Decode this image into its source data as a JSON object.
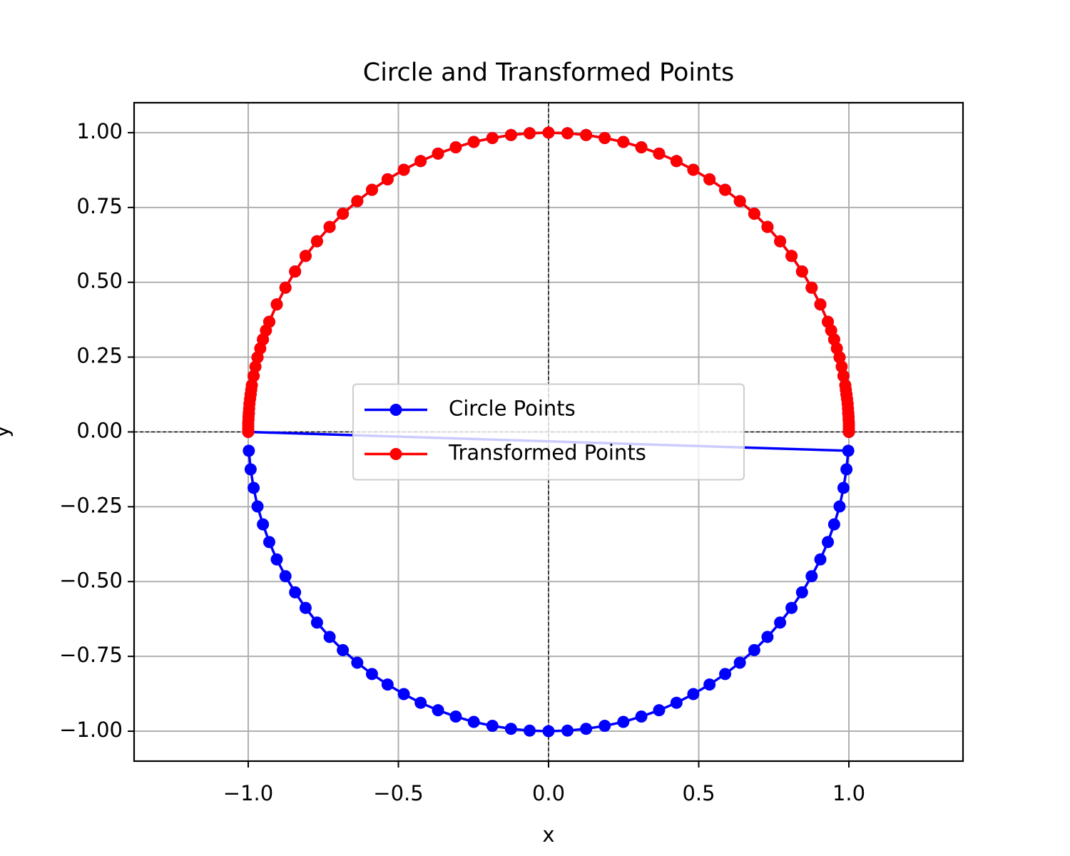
{
  "chart_data": {
    "type": "line",
    "title": "Circle and Transformed Points",
    "xlabel": "x",
    "ylabel": "y",
    "xlim": [
      -1.38,
      1.38
    ],
    "ylim": [
      -1.1,
      1.1
    ],
    "xticks": [
      {
        "value": -1,
        "label": "−1.0"
      },
      {
        "value": -0.5,
        "label": "−0.5"
      },
      {
        "value": 0,
        "label": "0.0"
      },
      {
        "value": 0.5,
        "label": "0.5"
      },
      {
        "value": 1,
        "label": "1.0"
      }
    ],
    "yticks": [
      {
        "value": -1,
        "label": "−1.00"
      },
      {
        "value": -0.75,
        "label": "−0.75"
      },
      {
        "value": -0.5,
        "label": "−0.50"
      },
      {
        "value": -0.25,
        "label": "−0.25"
      },
      {
        "value": 0,
        "label": "0.00"
      },
      {
        "value": 0.25,
        "label": "0.25"
      },
      {
        "value": 0.5,
        "label": "0.50"
      },
      {
        "value": 0.75,
        "label": "0.75"
      },
      {
        "value": 1,
        "label": "1.00"
      }
    ],
    "grid": true,
    "hline": 0,
    "vline": 0,
    "legend": "center",
    "series": [
      {
        "name": "Circle Points",
        "color": "#0000ff",
        "x": [
          1,
          0.998,
          0.992,
          0.982,
          0.969,
          0.951,
          0.93,
          0.905,
          0.876,
          0.844,
          0.809,
          0.771,
          0.729,
          0.685,
          0.637,
          0.588,
          0.536,
          0.482,
          0.426,
          0.368,
          0.309,
          0.249,
          0.187,
          0.125,
          0.063,
          0,
          -0.063,
          -0.125,
          -0.187,
          -0.249,
          -0.309,
          -0.368,
          -0.426,
          -0.482,
          -0.536,
          -0.588,
          -0.637,
          -0.685,
          -0.729,
          -0.771,
          -0.809,
          -0.844,
          -0.876,
          -0.905,
          -0.93,
          -0.951,
          -0.969,
          -0.982,
          -0.992,
          -0.998,
          -1,
          0.998,
          0.992,
          0.982,
          0.969,
          0.951,
          0.93,
          0.905,
          0.876,
          0.844,
          0.809,
          0.771,
          0.729,
          0.685,
          0.637,
          0.588,
          0.536,
          0.482,
          0.426,
          0.368,
          0.309,
          0.249,
          0.187,
          0.125,
          0.063,
          0,
          -0.063,
          -0.125,
          -0.187,
          -0.249,
          -0.309,
          -0.368,
          -0.426,
          -0.482,
          -0.536,
          -0.588,
          -0.637,
          -0.685,
          -0.729,
          -0.771,
          -0.809,
          -0.844,
          -0.876,
          -0.905,
          -0.93,
          -0.951,
          -0.969,
          -0.982,
          -0.992,
          -0.998
        ],
        "values": [
          0,
          0.063,
          0.125,
          0.187,
          0.249,
          0.309,
          0.368,
          0.426,
          0.482,
          0.536,
          0.588,
          0.637,
          0.685,
          0.729,
          0.771,
          0.809,
          0.844,
          0.876,
          0.905,
          0.93,
          0.951,
          0.969,
          0.982,
          0.992,
          0.998,
          1,
          0.998,
          0.992,
          0.982,
          0.969,
          0.951,
          0.93,
          0.905,
          0.876,
          0.844,
          0.809,
          0.771,
          0.729,
          0.685,
          0.637,
          0.588,
          0.536,
          0.482,
          0.426,
          0.368,
          0.309,
          0.249,
          0.187,
          0.125,
          0.063,
          0,
          -0.063,
          -0.125,
          -0.187,
          -0.249,
          -0.309,
          -0.368,
          -0.426,
          -0.482,
          -0.536,
          -0.588,
          -0.637,
          -0.685,
          -0.729,
          -0.771,
          -0.809,
          -0.844,
          -0.876,
          -0.905,
          -0.93,
          -0.951,
          -0.969,
          -0.982,
          -0.992,
          -0.998,
          -1,
          -0.998,
          -0.992,
          -0.982,
          -0.969,
          -0.951,
          -0.93,
          -0.905,
          -0.876,
          -0.844,
          -0.809,
          -0.771,
          -0.729,
          -0.685,
          -0.637,
          -0.588,
          -0.536,
          -0.482,
          -0.426,
          -0.368,
          -0.309,
          -0.249,
          -0.187,
          -0.125,
          -0.063
        ]
      },
      {
        "name": "Transformed Points",
        "color": "#ff0000",
        "x": [
          1,
          1,
          1,
          1,
          0.999,
          0.999,
          0.998,
          0.997,
          0.996,
          0.994,
          0.992,
          0.99,
          0.988,
          0.982,
          0.976,
          0.969,
          0.96,
          0.951,
          0.941,
          0.93,
          0.905,
          0.876,
          0.844,
          0.809,
          0.771,
          0.729,
          0.685,
          0.637,
          0.588,
          0.536,
          0.482,
          0.426,
          0.368,
          0.309,
          0.249,
          0.187,
          0.125,
          0.063,
          0,
          -0.063,
          -0.125,
          -0.187,
          -0.249,
          -0.309,
          -0.368,
          -0.426,
          -0.482,
          -0.536,
          -0.588,
          -0.637,
          -0.685,
          -0.729,
          -0.771,
          -0.809,
          -0.844,
          -0.876,
          -0.905,
          -0.93,
          -0.941,
          -0.951,
          -0.96,
          -0.969,
          -0.976,
          -0.982,
          -0.988,
          -0.99,
          -0.992,
          -0.994,
          -0.996,
          -0.997,
          -0.998,
          -0.999,
          -0.999,
          -1,
          -1,
          -1,
          -1
        ],
        "values": [
          0,
          0.01,
          0.021,
          0.031,
          0.042,
          0.052,
          0.063,
          0.078,
          0.094,
          0.11,
          0.125,
          0.141,
          0.156,
          0.187,
          0.218,
          0.249,
          0.279,
          0.309,
          0.339,
          0.368,
          0.426,
          0.482,
          0.536,
          0.588,
          0.637,
          0.685,
          0.729,
          0.771,
          0.809,
          0.844,
          0.876,
          0.905,
          0.93,
          0.951,
          0.969,
          0.982,
          0.992,
          0.998,
          1,
          0.998,
          0.992,
          0.982,
          0.969,
          0.951,
          0.93,
          0.905,
          0.876,
          0.844,
          0.809,
          0.771,
          0.729,
          0.685,
          0.637,
          0.588,
          0.536,
          0.482,
          0.426,
          0.368,
          0.339,
          0.309,
          0.279,
          0.249,
          0.218,
          0.187,
          0.156,
          0.141,
          0.125,
          0.11,
          0.094,
          0.078,
          0.063,
          0.052,
          0.042,
          0.031,
          0.021,
          0.01,
          0
        ]
      }
    ]
  }
}
